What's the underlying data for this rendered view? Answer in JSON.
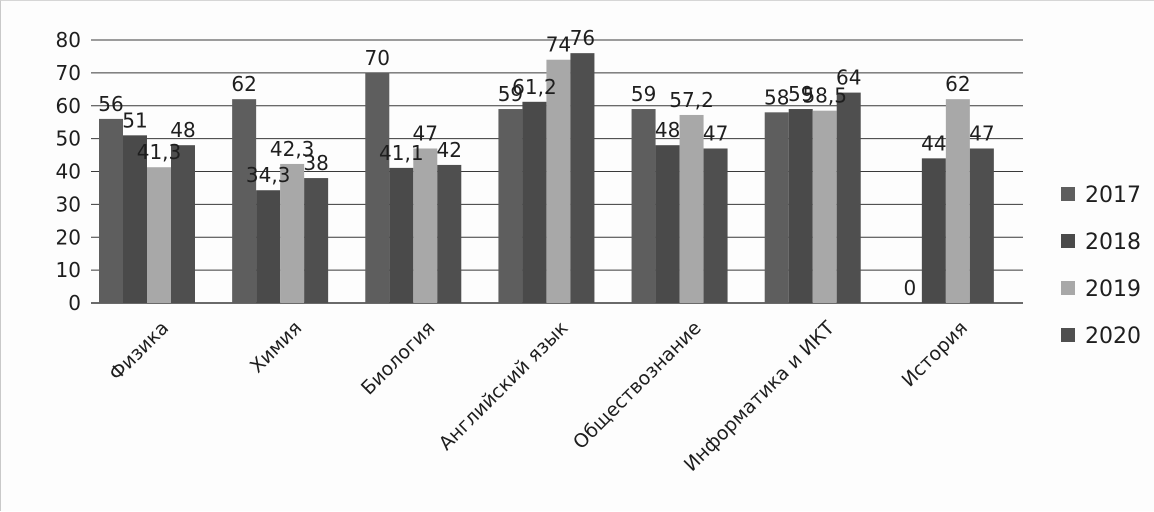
{
  "chart_data": {
    "type": "bar",
    "title": "",
    "xlabel": "",
    "ylabel": "",
    "ylim": [
      0,
      80
    ],
    "yticks": [
      0,
      10,
      20,
      30,
      40,
      50,
      60,
      70,
      80
    ],
    "ytick_labels": [
      "0",
      "10",
      "20",
      "30",
      "40",
      "50",
      "60",
      "70",
      "80"
    ],
    "grid": true,
    "legend_position": "right",
    "categories": [
      "Физика",
      "Химия",
      "Биология",
      "Английский язык",
      "Обществознание",
      "Информатика и ИКТ",
      "История"
    ],
    "series": [
      {
        "name": "2017",
        "color": "#5e5e5e",
        "values": [
          56,
          62,
          70,
          59,
          59,
          58,
          0
        ],
        "labels": [
          "56",
          "62",
          "70",
          "59",
          "59",
          "58",
          "0"
        ]
      },
      {
        "name": "2018",
        "color": "#4a4a4a",
        "values": [
          51,
          34.3,
          41.1,
          61.2,
          48,
          59,
          44
        ],
        "labels": [
          "51",
          "34,3",
          "41,1",
          "61,2",
          "48",
          "59",
          "44"
        ]
      },
      {
        "name": "2019",
        "color": "#a8a8a8",
        "values": [
          41.3,
          42.3,
          47,
          74,
          57.2,
          58.5,
          62
        ],
        "labels": [
          "41,3",
          "42,3",
          "47",
          "74",
          "57,2",
          "58,5",
          "62"
        ]
      },
      {
        "name": "2020",
        "color": "#4f4f4f",
        "values": [
          48,
          38,
          42,
          76,
          47,
          64,
          47
        ],
        "labels": [
          "48",
          "38",
          "42",
          "76",
          "47",
          "64",
          "47"
        ]
      }
    ]
  }
}
